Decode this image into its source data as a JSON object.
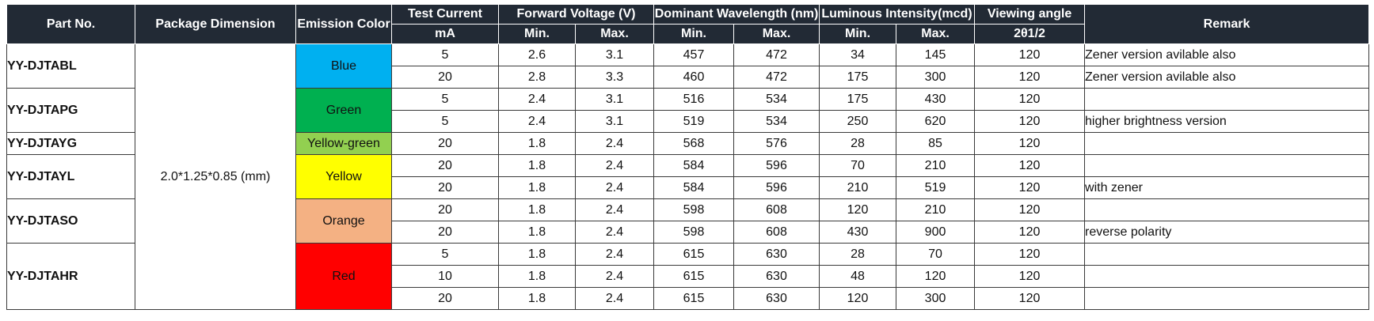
{
  "headers": {
    "part_no": "Part No.",
    "package_dimension": "Package Dimension",
    "emission_color": "Emission Color",
    "test_current": "Test Current",
    "test_current_unit": "mA",
    "forward_voltage": "Forward Voltage (V)",
    "dominant_wavelength": "Dominant  Wavelength (nm)",
    "luminous_intensity": "Luminous Intensity(mcd)",
    "viewing_angle": "Viewing angle",
    "viewing_angle_unit": "2θ1/2",
    "remark": "Remark",
    "min": "Min.",
    "max": "Max."
  },
  "package_dimension_value": "2.0*1.25*0.85 (mm)",
  "colors": {
    "blue": "#00b0f0",
    "green": "#00b050",
    "yellow_green": "#92d050",
    "yellow": "#ffff00",
    "orange": "#f4b183",
    "red": "#ff0000"
  },
  "groups": [
    {
      "part": "YY-DJTABL",
      "color_name": "Blue",
      "color_hex": "#00b0f0",
      "rows": [
        {
          "current": "5",
          "vf_min": "2.6",
          "vf_max": "3.1",
          "wl_min": "457",
          "wl_max": "472",
          "iv_min": "34",
          "iv_max": "145",
          "angle": "120",
          "remark": "Zener version avilable also"
        },
        {
          "current": "20",
          "vf_min": "2.8",
          "vf_max": "3.3",
          "wl_min": "460",
          "wl_max": "472",
          "iv_min": "175",
          "iv_max": "300",
          "angle": "120",
          "remark": "Zener version avilable also"
        }
      ]
    },
    {
      "part": "YY-DJTAPG",
      "color_name": "Green",
      "color_hex": "#00b050",
      "rows": [
        {
          "current": "5",
          "vf_min": "2.4",
          "vf_max": "3.1",
          "wl_min": "516",
          "wl_max": "534",
          "iv_min": "175",
          "iv_max": "430",
          "angle": "120",
          "remark": ""
        },
        {
          "current": "5",
          "vf_min": "2.4",
          "vf_max": "3.1",
          "wl_min": "519",
          "wl_max": "534",
          "iv_min": "250",
          "iv_max": "620",
          "angle": "120",
          "remark": "higher brightness version"
        }
      ]
    },
    {
      "part": "YY-DJTAYG",
      "color_name": "Yellow-green",
      "color_hex": "#92d050",
      "rows": [
        {
          "current": "20",
          "vf_min": "1.8",
          "vf_max": "2.4",
          "wl_min": "568",
          "wl_max": "576",
          "iv_min": "28",
          "iv_max": "85",
          "angle": "120",
          "remark": ""
        }
      ]
    },
    {
      "part": "YY-DJTAYL",
      "color_name": "Yellow",
      "color_hex": "#ffff00",
      "rows": [
        {
          "current": "20",
          "vf_min": "1.8",
          "vf_max": "2.4",
          "wl_min": "584",
          "wl_max": "596",
          "iv_min": "70",
          "iv_max": "210",
          "angle": "120",
          "remark": ""
        },
        {
          "current": "20",
          "vf_min": "1.8",
          "vf_max": "2.4",
          "wl_min": "584",
          "wl_max": "596",
          "iv_min": "210",
          "iv_max": "519",
          "angle": "120",
          "remark": "with zener"
        }
      ]
    },
    {
      "part": "YY-DJTASO",
      "color_name": "Orange",
      "color_hex": "#f4b183",
      "rows": [
        {
          "current": "20",
          "vf_min": "1.8",
          "vf_max": "2.4",
          "wl_min": "598",
          "wl_max": "608",
          "iv_min": "120",
          "iv_max": "210",
          "angle": "120",
          "remark": ""
        },
        {
          "current": "20",
          "vf_min": "1.8",
          "vf_max": "2.4",
          "wl_min": "598",
          "wl_max": "608",
          "iv_min": "430",
          "iv_max": "900",
          "angle": "120",
          "remark": "reverse polarity"
        }
      ]
    },
    {
      "part": "YY-DJTAHR",
      "color_name": "Red",
      "color_hex": "#ff0000",
      "rows": [
        {
          "current": "5",
          "vf_min": "1.8",
          "vf_max": "2.4",
          "wl_min": "615",
          "wl_max": "630",
          "iv_min": "28",
          "iv_max": "70",
          "angle": "120",
          "remark": ""
        },
        {
          "current": "10",
          "vf_min": "1.8",
          "vf_max": "2.4",
          "wl_min": "615",
          "wl_max": "630",
          "iv_min": "48",
          "iv_max": "120",
          "angle": "120",
          "remark": ""
        },
        {
          "current": "20",
          "vf_min": "1.8",
          "vf_max": "2.4",
          "wl_min": "615",
          "wl_max": "630",
          "iv_min": "120",
          "iv_max": "300",
          "angle": "120",
          "remark": ""
        }
      ]
    }
  ]
}
